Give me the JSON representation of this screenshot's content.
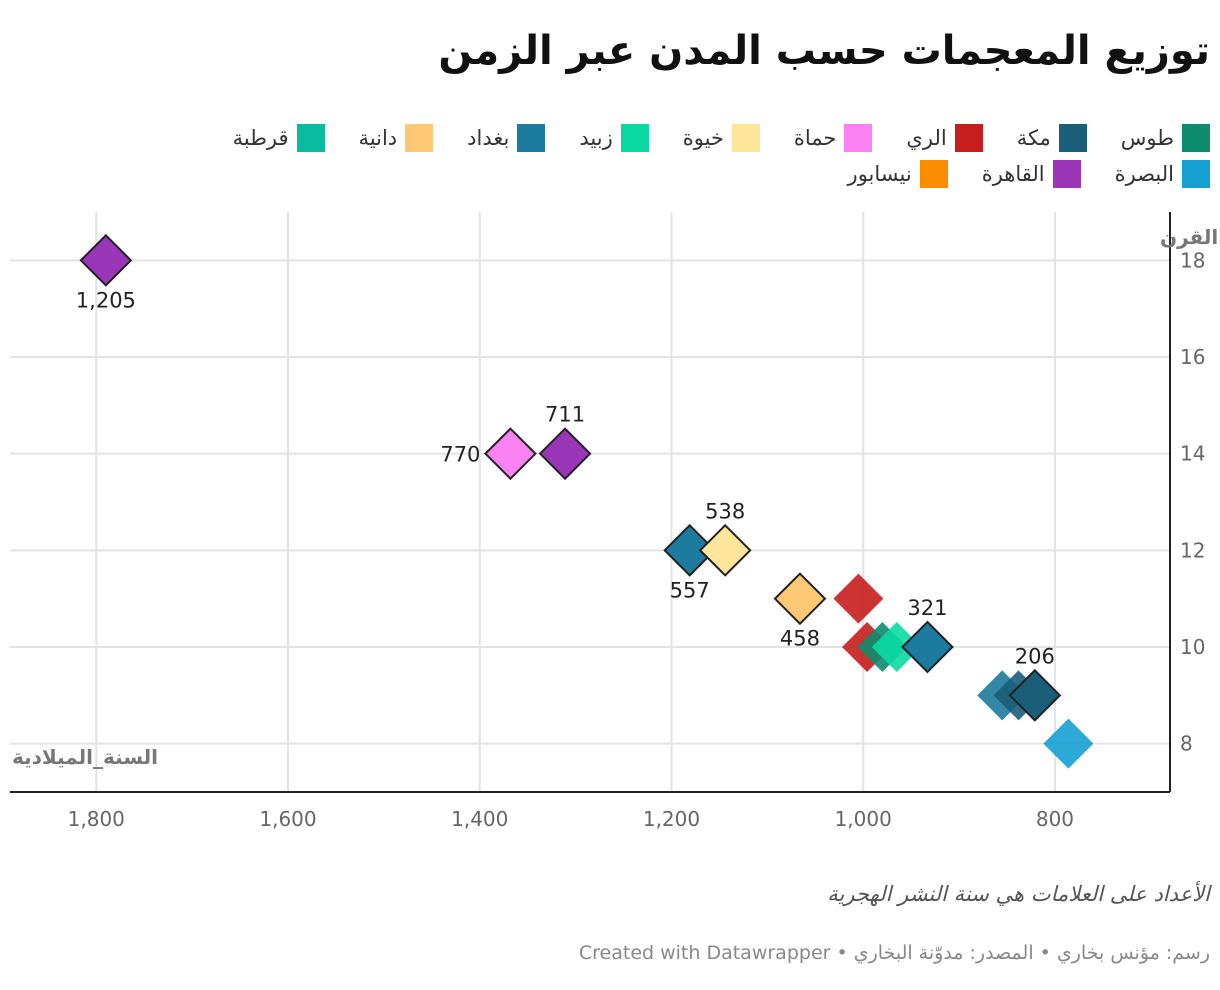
{
  "title": "توزيع المعجمات حسب المدن عبر الزمن",
  "footnote": "الأعداد على العلامات هي سنة النشر الهجرية",
  "credit": "رسم: مؤنس بخاري • المصدر: مدوّنة البخاري • Created with Datawrapper",
  "legend": [
    {
      "name": "طوس",
      "color": "#0e8c6e"
    },
    {
      "name": "مكة",
      "color": "#1a5e7a"
    },
    {
      "name": "الري",
      "color": "#c71e1d"
    },
    {
      "name": "حماة",
      "color": "#fa81f2"
    },
    {
      "name": "خيوة",
      "color": "#fde59b"
    },
    {
      "name": "زبيد",
      "color": "#0adaa2"
    },
    {
      "name": "بغداد",
      "color": "#1d7b9f"
    },
    {
      "name": "دانية",
      "color": "#fdc874"
    },
    {
      "name": "قرطبة",
      "color": "#09bb9f"
    },
    {
      "name": "البصرة",
      "color": "#15a0d1"
    },
    {
      "name": "القاهرة",
      "color": "#9b36b8"
    },
    {
      "name": "نيسابور",
      "color": "#fa8c00"
    }
  ],
  "chart_data": {
    "type": "scatter",
    "xlabel": "السنة_الميلادية",
    "ylabel": "القرن",
    "x_reversed": true,
    "xlim": [
      1890,
      680
    ],
    "ylim": [
      7,
      19
    ],
    "xticks": [
      1800,
      1600,
      1400,
      1200,
      1000,
      800
    ],
    "yticks": [
      8,
      10,
      12,
      14,
      16,
      18
    ],
    "x_tick_labels": [
      "1,800",
      "1,600",
      "1,400",
      "1,200",
      "1,000",
      "800"
    ],
    "y_tick_labels": [
      "8",
      "10",
      "12",
      "14",
      "16",
      "18"
    ],
    "grid": true,
    "legend_position": "top",
    "points": [
      {
        "city": "القاهرة",
        "x": 1790,
        "y": 18,
        "label": "1,205",
        "label_pos": "below"
      },
      {
        "city": "حماة",
        "x": 1368,
        "y": 14,
        "label": "770",
        "label_pos": "left"
      },
      {
        "city": "القاهرة",
        "x": 1311,
        "y": 14,
        "label": "711",
        "label_pos": "above"
      },
      {
        "city": "بغداد",
        "x": 1181,
        "y": 12,
        "label": "557",
        "label_pos": "below"
      },
      {
        "city": "خيوة",
        "x": 1144,
        "y": 12,
        "label": "538",
        "label_pos": "above"
      },
      {
        "city": "دانية",
        "x": 1066,
        "y": 11,
        "label": "458",
        "label_pos": "below"
      },
      {
        "city": "الري",
        "x": 1005,
        "y": 11,
        "label": "",
        "label_pos": ""
      },
      {
        "city": "الري",
        "x": 996,
        "y": 10,
        "label": "",
        "label_pos": ""
      },
      {
        "city": "طوس",
        "x": 980,
        "y": 10,
        "label": "",
        "label_pos": ""
      },
      {
        "city": "زبيد",
        "x": 965,
        "y": 10,
        "label": "",
        "label_pos": ""
      },
      {
        "city": "بغداد",
        "x": 933,
        "y": 10,
        "label": "321",
        "label_pos": "above"
      },
      {
        "city": "بغداد",
        "x": 855,
        "y": 9,
        "label": "",
        "label_pos": ""
      },
      {
        "city": "مكة",
        "x": 838,
        "y": 9,
        "label": "",
        "label_pos": ""
      },
      {
        "city": "مكة",
        "x": 821,
        "y": 9,
        "label": "206",
        "label_pos": "above"
      },
      {
        "city": "البصرة",
        "x": 786,
        "y": 8,
        "label": "",
        "label_pos": ""
      }
    ]
  }
}
